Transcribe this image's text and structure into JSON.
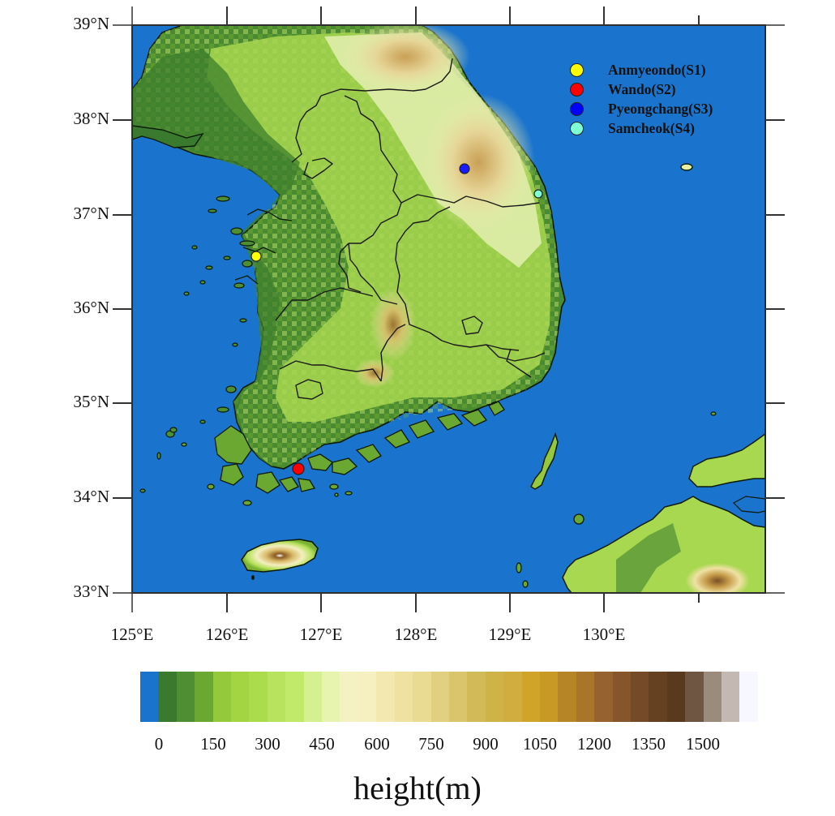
{
  "figure": {
    "type": "topographic-map",
    "region": "Korean Peninsula",
    "ocean_color": "#1a73cc"
  },
  "axes": {
    "y_ticks": [
      {
        "label": "39°N",
        "lat": 39
      },
      {
        "label": "38°N",
        "lat": 38
      },
      {
        "label": "37°N",
        "lat": 37
      },
      {
        "label": "36°N",
        "lat": 36
      },
      {
        "label": "35°N",
        "lat": 35
      },
      {
        "label": "34°N",
        "lat": 34
      },
      {
        "label": "33°N",
        "lat": 33
      }
    ],
    "x_ticks": [
      {
        "label": "125°E",
        "lon": 125
      },
      {
        "label": "126°E",
        "lon": 126
      },
      {
        "label": "127°E",
        "lon": 127
      },
      {
        "label": "128°E",
        "lon": 128
      },
      {
        "label": "129°E",
        "lon": 129
      },
      {
        "label": "130°E",
        "lon": 130
      },
      {
        "label": "",
        "lon": 131
      }
    ],
    "lon_range": [
      125,
      131.7
    ],
    "lat_range": [
      33,
      39
    ]
  },
  "legend": {
    "items": [
      {
        "label": "Anmyeondo(S1)",
        "color": "#ffff00"
      },
      {
        "label": "Wando(S2)",
        "color": "#ff0000"
      },
      {
        "label": "Pyeongchang(S3)",
        "color": "#0000ff"
      },
      {
        "label": "Samcheok(S4)",
        "color": "#7fffd4"
      }
    ]
  },
  "stations": [
    {
      "id": "S1",
      "name": "Anmyeondo",
      "lon": 126.32,
      "lat": 36.54,
      "color": "#ffff00"
    },
    {
      "id": "S2",
      "name": "Wando",
      "lon": 126.76,
      "lat": 34.3,
      "color": "#ff0000"
    },
    {
      "id": "S3",
      "name": "Pyeongchang",
      "lon": 128.52,
      "lat": 37.48,
      "color": "#1a1aff"
    },
    {
      "id": "S4",
      "name": "Samcheok",
      "lon": 129.3,
      "lat": 37.23,
      "color": "#7fffd4"
    }
  ],
  "colorbar": {
    "title": "height(m)",
    "labels": [
      "0",
      "150",
      "300",
      "450",
      "600",
      "750",
      "900",
      "1050",
      "1200",
      "1350",
      "1500"
    ],
    "colors": [
      "#1a73cc",
      "#3a7a2e",
      "#4f8f33",
      "#6aa832",
      "#93c93a",
      "#a3d442",
      "#abdc4c",
      "#b8e35e",
      "#c2ea6a",
      "#d4f090",
      "#e6f4b0",
      "#f4f1c2",
      "#f6efc0",
      "#f3e8b0",
      "#efe2a0",
      "#e9db92",
      "#e2d081",
      "#d9c56c",
      "#d2bb56",
      "#cfb248",
      "#d0ad3e",
      "#d0a428",
      "#c99926",
      "#b58526",
      "#a8752a",
      "#956230",
      "#87552c",
      "#754a27",
      "#654021",
      "#5a3a1f",
      "#6e5642",
      "#9a8b7c",
      "#c4b8b2",
      "#f7f7ff"
    ]
  },
  "chart_data": {
    "type": "heatmap",
    "title": "",
    "xlabel": "",
    "ylabel": "",
    "colorbar_label": "height(m)",
    "colorbar_ticks": [
      0,
      150,
      300,
      450,
      600,
      750,
      900,
      1050,
      1200,
      1350,
      1500
    ],
    "colorbar_bin_width_m": 50,
    "x_ticks": [
      "125°E",
      "126°E",
      "127°E",
      "128°E",
      "129°E",
      "130°E"
    ],
    "y_ticks": [
      "33°N",
      "34°N",
      "35°N",
      "36°N",
      "37°N",
      "38°N",
      "39°N"
    ],
    "xlim": [
      125,
      131.7
    ],
    "ylim": [
      33,
      39
    ],
    "legend": [
      "Anmyeondo(S1)",
      "Wando(S2)",
      "Pyeongchang(S3)",
      "Samcheok(S4)"
    ],
    "legend_position": "upper right",
    "points": [
      {
        "label": "Anmyeondo(S1)",
        "lon": 126.32,
        "lat": 36.54
      },
      {
        "label": "Wando(S2)",
        "lon": 126.76,
        "lat": 34.3
      },
      {
        "label": "Pyeongchang(S3)",
        "lon": 128.52,
        "lat": 37.48
      },
      {
        "label": "Samcheok(S4)",
        "lon": 129.3,
        "lat": 37.23
      }
    ]
  }
}
